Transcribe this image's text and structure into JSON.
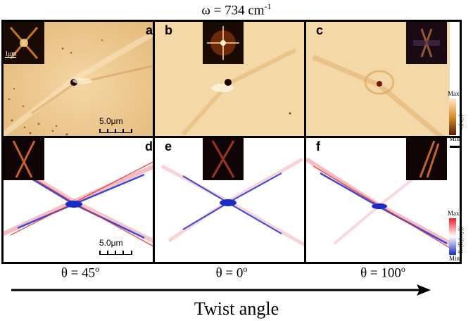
{
  "figure": {
    "title_prefix": "ω = 734 cm",
    "title_sup": "-1",
    "axis_title": "Twist angle",
    "panels_top": [
      {
        "label": "a",
        "inset_scale": "1μm",
        "scalebar": "5.0μm"
      },
      {
        "label": "b"
      },
      {
        "label": "c"
      }
    ],
    "panels_bottom": [
      {
        "label": "d",
        "scalebar": "5.0μm"
      },
      {
        "label": "e"
      },
      {
        "label": "f"
      }
    ],
    "thetas": [
      {
        "text": "θ = 45",
        "sup": "o"
      },
      {
        "text": "θ = 0",
        "sup": "o"
      },
      {
        "text": "θ = 100",
        "sup": "o"
      }
    ],
    "colorbar_top": {
      "max": "Max.",
      "min": "Min.",
      "label": "s₃(x,y)",
      "colors": [
        "#fbe8c8",
        "#d9902f",
        "#5a1a05"
      ]
    },
    "colorbar_bottom": {
      "max": "Max.",
      "min": "Min.",
      "label": "Re(E₂(x,y))",
      "colors": [
        "#e8202a",
        "#ffffff",
        "#1a2cc8"
      ]
    }
  }
}
